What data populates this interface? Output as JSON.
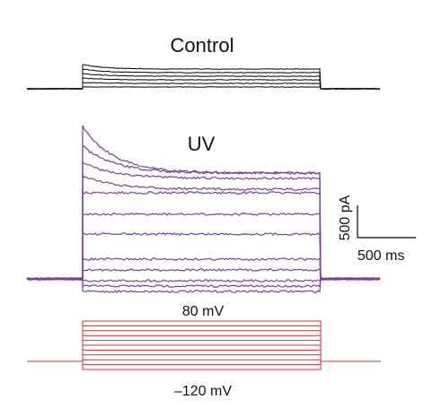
{
  "chart_data": {
    "type": "line",
    "panels": [
      {
        "title": "Control",
        "trace_color": "#000000",
        "traces": [
          {
            "steady": 2,
            "peak": 2
          },
          {
            "steady": 6,
            "peak": 7
          },
          {
            "steady": 10,
            "peak": 12
          },
          {
            "steady": 14,
            "peak": 17
          },
          {
            "steady": 18,
            "peak": 22
          },
          {
            "steady": 22,
            "peak": 27
          }
        ]
      },
      {
        "title": "UV",
        "trace_color": "#7b3f9e",
        "traces": [
          {
            "steady": -14,
            "peak": -14
          },
          {
            "steady": -8,
            "peak": -8
          },
          {
            "steady": -2,
            "peak": -2
          },
          {
            "steady": 10,
            "peak": 10
          },
          {
            "steady": 22,
            "peak": 22
          },
          {
            "steady": 50,
            "peak": 50
          },
          {
            "steady": 72,
            "peak": 72
          },
          {
            "steady": 96,
            "peak": 96
          },
          {
            "steady": 100,
            "peak": 115
          },
          {
            "steady": 112,
            "peak": 130
          },
          {
            "steady": 118,
            "peak": 148
          },
          {
            "steady": 118,
            "peak": 170
          }
        ]
      },
      {
        "title": "",
        "trace_color": "#d32f2f",
        "steps": {
          "count": 11,
          "from_label": "–120 mV",
          "to_label": "80 mV"
        }
      }
    ],
    "scale_bar": {
      "current_label": "500 pA",
      "time_label": "500 ms"
    }
  }
}
